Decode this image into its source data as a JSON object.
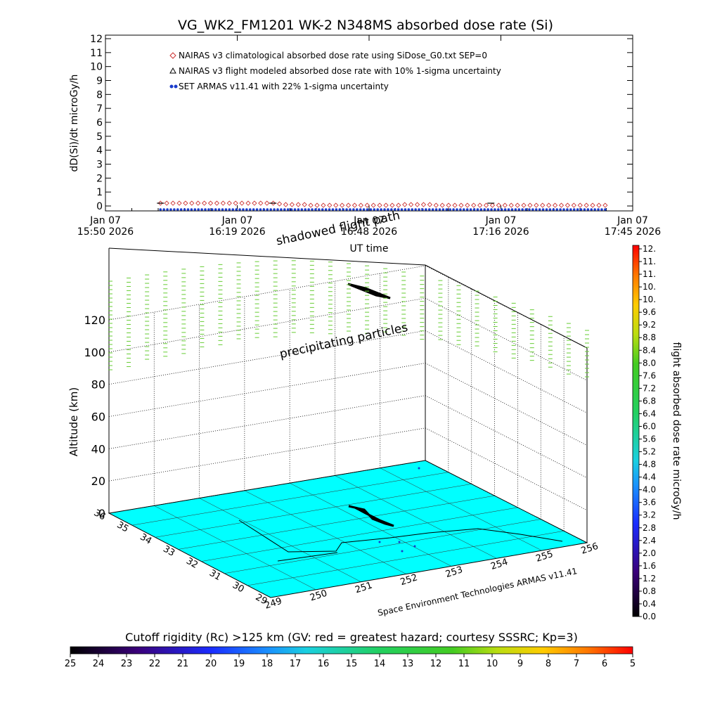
{
  "title": "VG_WK2_FM1201    WK-2 N348MS absorbed dose rate (Si)",
  "chart_data": [
    {
      "type": "scatter",
      "ylabel": "dD(Si)/dt microGy/h",
      "xlabel": "UT time",
      "ylim": [
        0,
        12
      ],
      "y_ticks": [
        "0",
        "1",
        "2",
        "3",
        "4",
        "5",
        "6",
        "7",
        "8",
        "9",
        "10",
        "11",
        "12"
      ],
      "x_ticks": [
        {
          "date": "Jan 07",
          "time": "15:50 2026"
        },
        {
          "date": "Jan 07",
          "time": "16:19 2026"
        },
        {
          "date": "Jan 07",
          "time": "16:48 2026"
        },
        {
          "date": "Jan 07",
          "time": "17:16 2026"
        },
        {
          "date": "Jan 07",
          "time": "17:45 2026"
        }
      ],
      "legend": [
        {
          "label": "NAIRAS v3 climatological absorbed dose rate using SiDose_G0.txt SEP=0",
          "color": "#cc3333",
          "marker": "diamond"
        },
        {
          "label": "NAIRAS v3 flight modeled absorbed dose rate with 10% 1-sigma uncertainty",
          "color": "#000000",
          "marker": "triangle"
        },
        {
          "label": "SET ARMAS v11.41 with 22% 1-sigma uncertainty",
          "color": "#1a3ccc",
          "marker": "dot"
        }
      ],
      "series": [
        {
          "name": "NAIRAS v3 climatological absorbed dose rate using SiDose_G0.txt SEP=0",
          "x_start": "Jan 07 16:02",
          "x_end": "Jan 07 17:39",
          "values": [
            0.2,
            0.2,
            0.2,
            0.2,
            0.2,
            0.2,
            0.2,
            0.2,
            0.2,
            0.2,
            0.2,
            0.2,
            0.2,
            0.2,
            0.2,
            0.2,
            0.2,
            0.2,
            0.2,
            0.15,
            0.1,
            0.1,
            0.1,
            0.1,
            0.05,
            0.05,
            0.05,
            0.05,
            0.05,
            0.05,
            0.05,
            0.05,
            0.05,
            0.05,
            0.05,
            0.05,
            0.05,
            0.05,
            0.05,
            0.1,
            0.1,
            0.1,
            0.1,
            0.1,
            0.05,
            0.05,
            0.05,
            0.05,
            0.05,
            0.05,
            0.05,
            0.05,
            0.05,
            0.05,
            0.05,
            0.05,
            0.05,
            0.05,
            0.05,
            0.05,
            0.05,
            0.05,
            0.05,
            0.05,
            0.05,
            0.05,
            0.05,
            0.05,
            0.05,
            0.05,
            0.05,
            0.05
          ]
        },
        {
          "name": "SET ARMAS v11.41 with 22% 1-sigma uncertainty",
          "x_start": "Jan 07 16:02",
          "x_end": "Jan 07 17:39",
          "values": [
            0.0
          ]
        }
      ]
    },
    {
      "type": "scatter",
      "zlabel": "Altitude (km)",
      "zlim": [
        0,
        120
      ],
      "z_ticks": [
        "0",
        "20",
        "40",
        "60",
        "80",
        "100",
        "120"
      ],
      "x_ticks": [
        "249",
        "250",
        "251",
        "252",
        "253",
        "254",
        "255",
        "256"
      ],
      "y_ticks": [
        "29",
        "30",
        "31",
        "32",
        "33",
        "34",
        "35",
        "36"
      ],
      "annotations": [
        "shadowed flight path",
        "precipitating particles",
        "Space Environment Technologies ARMAS v11.41"
      ],
      "particle_color": "#66cc33",
      "ground_color": "#00ffff"
    }
  ],
  "colorbar_right": {
    "label": "flight absorbed dose rate microGy/h",
    "ticks": [
      "0.0",
      "0.4",
      "0.8",
      "1.2",
      "1.6",
      "2.0",
      "2.4",
      "2.8",
      "3.2",
      "3.6",
      "4.0",
      "4.4",
      "4.8",
      "5.2",
      "5.6",
      "6.0",
      "6.4",
      "6.8",
      "7.2",
      "7.6",
      "8.0",
      "8.4",
      "8.8",
      "9.2",
      "9.6",
      "10.",
      "10.",
      "11.",
      "11.",
      "12."
    ]
  },
  "colorbar_bottom": {
    "label": "Cutoff rigidity (Rc) >125 km (GV: red = greatest hazard; courtesy SSSRC; Kp=3)",
    "ticks": [
      "25",
      "24",
      "23",
      "22",
      "21",
      "20",
      "19",
      "18",
      "17",
      "16",
      "15",
      "14",
      "13",
      "12",
      "11",
      "10",
      "9",
      "8",
      "7",
      "6",
      "5"
    ]
  }
}
